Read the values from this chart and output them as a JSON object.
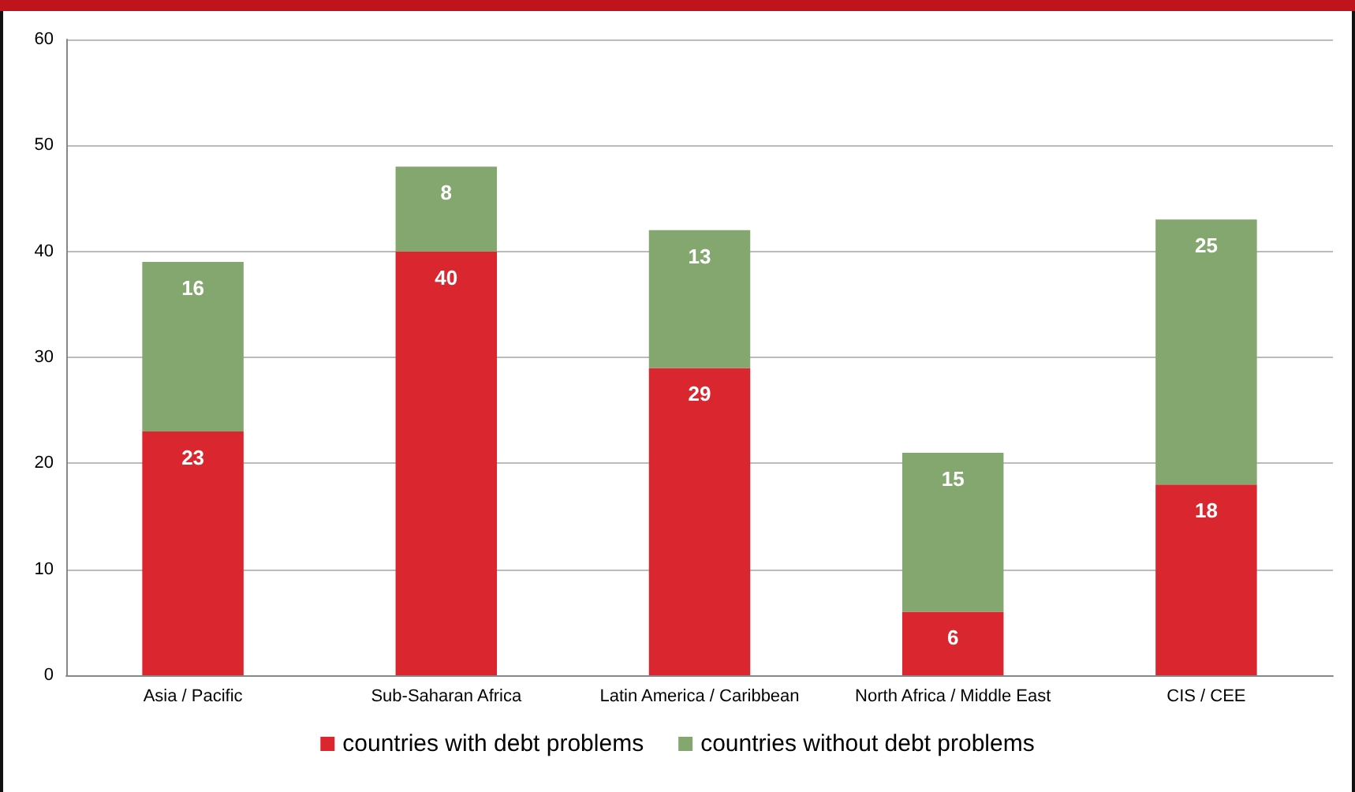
{
  "chart_data": {
    "type": "bar",
    "stacked": true,
    "categories": [
      "Asia / Pacific",
      "Sub-Saharan Africa",
      "Latin America / Caribbean",
      "North Africa / Middle East",
      "CIS / CEE"
    ],
    "series": [
      {
        "name": "countries with debt problems",
        "color": "#d9262f",
        "values": [
          23,
          40,
          29,
          6,
          18
        ]
      },
      {
        "name": "countries without debt problems",
        "color": "#84a66f",
        "values": [
          16,
          8,
          13,
          15,
          25
        ]
      }
    ],
    "ylim": [
      0,
      60
    ],
    "yticks": [
      0,
      10,
      20,
      30,
      40,
      50,
      60
    ],
    "grid": "y",
    "legend": "bottom",
    "data_labels": true
  }
}
